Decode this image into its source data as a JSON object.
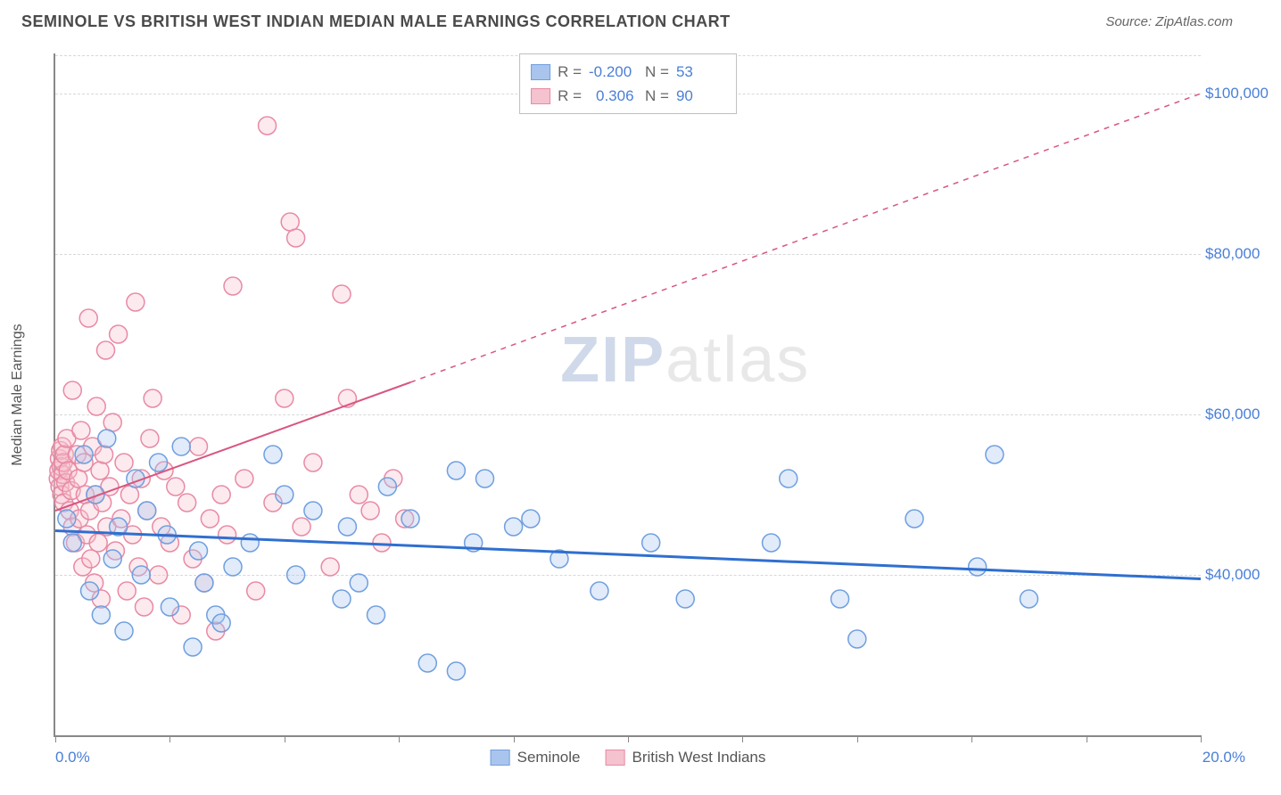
{
  "header": {
    "title": "SEMINOLE VS BRITISH WEST INDIAN MEDIAN MALE EARNINGS CORRELATION CHART",
    "source": "Source: ZipAtlas.com"
  },
  "watermark": {
    "part1": "ZIP",
    "part2": "atlas"
  },
  "chart": {
    "type": "scatter",
    "background_color": "#ffffff",
    "grid_color": "#d8d8d8",
    "axis_color": "#888888",
    "ylabel": "Median Male Earnings",
    "ylabel_fontsize": 16,
    "ylabel_color": "#555555",
    "xlim": [
      0,
      20
    ],
    "ylim": [
      20000,
      105000
    ],
    "xaxis_label_left": "0.0%",
    "xaxis_label_right": "20.0%",
    "xaxis_label_color": "#4a7fd8",
    "ytick_values": [
      40000,
      60000,
      80000,
      100000
    ],
    "ytick_labels": [
      "$40,000",
      "$60,000",
      "$80,000",
      "$100,000"
    ],
    "ytick_color": "#4a7fd8",
    "ytick_fontsize": 17,
    "xtick_positions": [
      0,
      2,
      4,
      6,
      8,
      10,
      12,
      14,
      16,
      18,
      20
    ],
    "marker_radius": 10,
    "marker_fill_opacity": 0.35,
    "marker_stroke_width": 1.5,
    "series": [
      {
        "name": "Seminole",
        "color_fill": "#a9c5ee",
        "color_stroke": "#6f9fe0",
        "r_value": "-0.200",
        "n_value": "53",
        "trend": {
          "solid_from": [
            0,
            45500
          ],
          "solid_to": [
            20,
            39500
          ],
          "dash_to": null,
          "color": "#2f6fd0",
          "width": 3
        },
        "points": [
          [
            0.2,
            47000
          ],
          [
            0.3,
            44000
          ],
          [
            0.5,
            55000
          ],
          [
            0.6,
            38000
          ],
          [
            0.7,
            50000
          ],
          [
            0.8,
            35000
          ],
          [
            0.9,
            57000
          ],
          [
            1.0,
            42000
          ],
          [
            1.1,
            46000
          ],
          [
            1.2,
            33000
          ],
          [
            1.4,
            52000
          ],
          [
            1.5,
            40000
          ],
          [
            1.6,
            48000
          ],
          [
            1.8,
            54000
          ],
          [
            1.95,
            45000
          ],
          [
            2.0,
            36000
          ],
          [
            2.2,
            56000
          ],
          [
            2.4,
            31000
          ],
          [
            2.5,
            43000
          ],
          [
            2.6,
            39000
          ],
          [
            2.8,
            35000
          ],
          [
            2.9,
            34000
          ],
          [
            3.1,
            41000
          ],
          [
            3.4,
            44000
          ],
          [
            3.8,
            55000
          ],
          [
            4.0,
            50000
          ],
          [
            4.2,
            40000
          ],
          [
            4.5,
            48000
          ],
          [
            5.0,
            37000
          ],
          [
            5.1,
            46000
          ],
          [
            5.3,
            39000
          ],
          [
            5.6,
            35000
          ],
          [
            5.8,
            51000
          ],
          [
            6.2,
            47000
          ],
          [
            6.5,
            29000
          ],
          [
            7.0,
            53000
          ],
          [
            7.3,
            44000
          ],
          [
            7.5,
            52000
          ],
          [
            8.0,
            46000
          ],
          [
            8.3,
            47000
          ],
          [
            8.8,
            42000
          ],
          [
            9.5,
            38000
          ],
          [
            10.4,
            44000
          ],
          [
            11.0,
            37000
          ],
          [
            12.5,
            44000
          ],
          [
            12.8,
            52000
          ],
          [
            13.7,
            37000
          ],
          [
            14.0,
            32000
          ],
          [
            15.0,
            47000
          ],
          [
            16.1,
            41000
          ],
          [
            16.4,
            55000
          ],
          [
            17.0,
            37000
          ],
          [
            7.0,
            28000
          ]
        ]
      },
      {
        "name": "British West Indians",
        "color_fill": "#f5c2cf",
        "color_stroke": "#e88aa5",
        "r_value": "0.306",
        "n_value": "90",
        "trend": {
          "solid_from": [
            0,
            48000
          ],
          "solid_to": [
            6.2,
            64000
          ],
          "dash_to": [
            20,
            100000
          ],
          "color": "#d8567f",
          "width": 2
        },
        "points": [
          [
            0.05,
            52000
          ],
          [
            0.06,
            53000
          ],
          [
            0.07,
            54500
          ],
          [
            0.08,
            51000
          ],
          [
            0.09,
            55500
          ],
          [
            0.1,
            53500
          ],
          [
            0.11,
            50000
          ],
          [
            0.12,
            56000
          ],
          [
            0.13,
            52500
          ],
          [
            0.14,
            54000
          ],
          [
            0.15,
            49000
          ],
          [
            0.16,
            55000
          ],
          [
            0.18,
            51500
          ],
          [
            0.2,
            57000
          ],
          [
            0.22,
            53000
          ],
          [
            0.25,
            48000
          ],
          [
            0.28,
            50500
          ],
          [
            0.3,
            63000
          ],
          [
            0.3,
            46000
          ],
          [
            0.35,
            44000
          ],
          [
            0.38,
            55000
          ],
          [
            0.4,
            52000
          ],
          [
            0.42,
            47000
          ],
          [
            0.45,
            58000
          ],
          [
            0.48,
            41000
          ],
          [
            0.5,
            54000
          ],
          [
            0.52,
            50000
          ],
          [
            0.55,
            45000
          ],
          [
            0.58,
            72000
          ],
          [
            0.6,
            48000
          ],
          [
            0.62,
            42000
          ],
          [
            0.65,
            56000
          ],
          [
            0.68,
            39000
          ],
          [
            0.7,
            50000
          ],
          [
            0.72,
            61000
          ],
          [
            0.75,
            44000
          ],
          [
            0.78,
            53000
          ],
          [
            0.8,
            37000
          ],
          [
            0.82,
            49000
          ],
          [
            0.85,
            55000
          ],
          [
            0.88,
            68000
          ],
          [
            0.9,
            46000
          ],
          [
            0.95,
            51000
          ],
          [
            1.0,
            59000
          ],
          [
            1.05,
            43000
          ],
          [
            1.1,
            70000
          ],
          [
            1.15,
            47000
          ],
          [
            1.2,
            54000
          ],
          [
            1.25,
            38000
          ],
          [
            1.3,
            50000
          ],
          [
            1.35,
            45000
          ],
          [
            1.4,
            74000
          ],
          [
            1.45,
            41000
          ],
          [
            1.5,
            52000
          ],
          [
            1.55,
            36000
          ],
          [
            1.6,
            48000
          ],
          [
            1.65,
            57000
          ],
          [
            1.7,
            62000
          ],
          [
            1.8,
            40000
          ],
          [
            1.85,
            46000
          ],
          [
            1.9,
            53000
          ],
          [
            2.0,
            44000
          ],
          [
            2.1,
            51000
          ],
          [
            2.2,
            35000
          ],
          [
            2.3,
            49000
          ],
          [
            2.4,
            42000
          ],
          [
            2.5,
            56000
          ],
          [
            2.6,
            39000
          ],
          [
            2.7,
            47000
          ],
          [
            2.8,
            33000
          ],
          [
            2.9,
            50000
          ],
          [
            3.0,
            45000
          ],
          [
            3.1,
            76000
          ],
          [
            3.3,
            52000
          ],
          [
            3.5,
            38000
          ],
          [
            3.7,
            96000
          ],
          [
            3.8,
            49000
          ],
          [
            4.0,
            62000
          ],
          [
            4.1,
            84000
          ],
          [
            4.2,
            82000
          ],
          [
            4.3,
            46000
          ],
          [
            4.5,
            54000
          ],
          [
            4.8,
            41000
          ],
          [
            5.0,
            75000
          ],
          [
            5.1,
            62000
          ],
          [
            5.3,
            50000
          ],
          [
            5.5,
            48000
          ],
          [
            5.7,
            44000
          ],
          [
            5.9,
            52000
          ],
          [
            6.1,
            47000
          ]
        ]
      }
    ],
    "stats_legend": {
      "r_label": "R =",
      "n_label": "N =",
      "value_color": "#4a7fd8",
      "label_color": "#666666",
      "border_color": "#bfbfbf"
    },
    "bottom_legend": {
      "items": [
        "Seminole",
        "British West Indians"
      ],
      "text_color": "#555555"
    }
  }
}
